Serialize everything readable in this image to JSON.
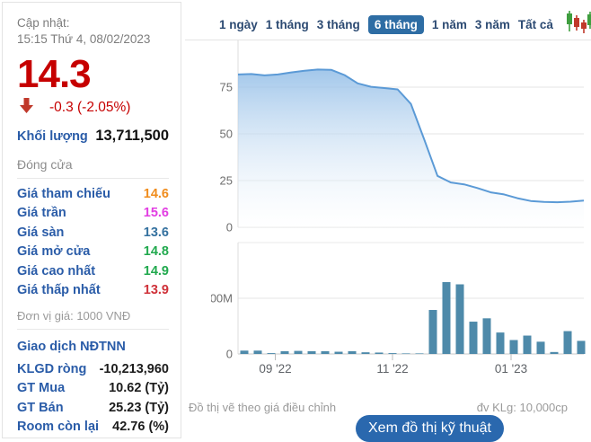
{
  "left_panel": {
    "updated_label": "Cập nhật:",
    "updated_time": "15:15 Thứ 4, 08/02/2023",
    "last_price": "14.3",
    "price_change": "-0.3 (-2.05%)",
    "volume_label": "Khối lượng",
    "volume_value": "13,711,500",
    "close_label": "Đóng cửa",
    "price_rows": [
      {
        "label": "Giá tham chiếu",
        "value": "14.6",
        "color": "#f08c1c"
      },
      {
        "label": "Giá trần",
        "value": "15.6",
        "color": "#e23ee2"
      },
      {
        "label": "Giá sàn",
        "value": "13.6",
        "color": "#34719f"
      },
      {
        "label": "Giá mở cửa",
        "value": "14.8",
        "color": "#21a94e"
      },
      {
        "label": "Giá cao nhất",
        "value": "14.9",
        "color": "#21a94e"
      },
      {
        "label": "Giá thấp nhất",
        "value": "13.9",
        "color": "#cf3139"
      }
    ],
    "unit_note": "Đơn vị giá: 1000 VNĐ",
    "foreign_title": "Giao dịch NĐTNN",
    "foreign_rows": [
      {
        "label": "KLGD ròng",
        "value": "-10,213,960"
      },
      {
        "label": "GT Mua",
        "value": "10.62 (Tỷ)"
      },
      {
        "label": "GT Bán",
        "value": "25.23 (Tỷ)"
      },
      {
        "label": "Room còn lại",
        "value": "42.76 (%)"
      }
    ]
  },
  "tabs": {
    "items": [
      {
        "label": "1 ngày",
        "active": false
      },
      {
        "label": "1 tháng",
        "active": false
      },
      {
        "label": "3 tháng",
        "active": false
      },
      {
        "label": "6 tháng",
        "active": true
      },
      {
        "label": "1 năm",
        "active": false
      },
      {
        "label": "3 năm",
        "active": false
      },
      {
        "label": "Tất cả",
        "active": false
      }
    ]
  },
  "icons": {
    "candlestick": "candlestick-chart-icon",
    "price_arrow": "price-down-arrow-icon"
  },
  "chart_data": [
    {
      "type": "area",
      "name": "price",
      "title": "",
      "x_span": "6 tháng (weekly points, ~08/2022 → 02/2023)",
      "ylim": [
        0,
        100
      ],
      "yticks": [
        0,
        25,
        50,
        75
      ],
      "ytick_labels": [
        "0",
        "25",
        "50",
        "75"
      ],
      "values": [
        81.8,
        82,
        81.3,
        81.8,
        82.9,
        83.8,
        84.4,
        84.3,
        81.5,
        77,
        75.2,
        74.5,
        73.8,
        66,
        47,
        27.5,
        24,
        23,
        21,
        18.7,
        17.6,
        15.6,
        14.1,
        13.6,
        13.4,
        13.7,
        14.3
      ],
      "line_color": "#5b9ad6",
      "fill_top": "#7cb0e2",
      "fill_bottom": "#ffffff",
      "grid": true
    },
    {
      "type": "bar",
      "name": "volume",
      "title": "",
      "ylim": [
        0,
        420
      ],
      "yticks": [
        0,
        200
      ],
      "ytick_labels": [
        "0",
        "200M"
      ],
      "extra_gridlines": [
        400
      ],
      "values_millions": [
        12,
        12,
        3,
        10,
        11,
        10,
        10,
        8,
        10,
        6,
        5,
        3,
        1,
        1,
        158,
        258,
        250,
        116,
        128,
        77,
        50,
        66,
        44,
        7,
        82,
        47
      ],
      "xticks": [
        {
          "label": "09 '22",
          "bar_index": 2.3
        },
        {
          "label": "11 '22",
          "bar_index": 11
        },
        {
          "label": "01 '23",
          "bar_index": 19.8
        }
      ],
      "bar_color": "#4e8aaa",
      "grid": true
    }
  ],
  "footer": {
    "left_note": "Đồ thị vẽ theo giá điều chỉnh",
    "right_note": "đv KLg: 10,000cp",
    "button_label": "Xem đồ thị kỹ thuật"
  },
  "colors": {
    "price_down_red": "#c60000",
    "label_blue": "#2a5ca8",
    "tab_text": "#2c4a72",
    "tab_active_bg": "#2e6da4",
    "button_bg": "#2a68ae",
    "area_line": "#5b9ad6",
    "volume_bar": "#4e8aaa"
  }
}
